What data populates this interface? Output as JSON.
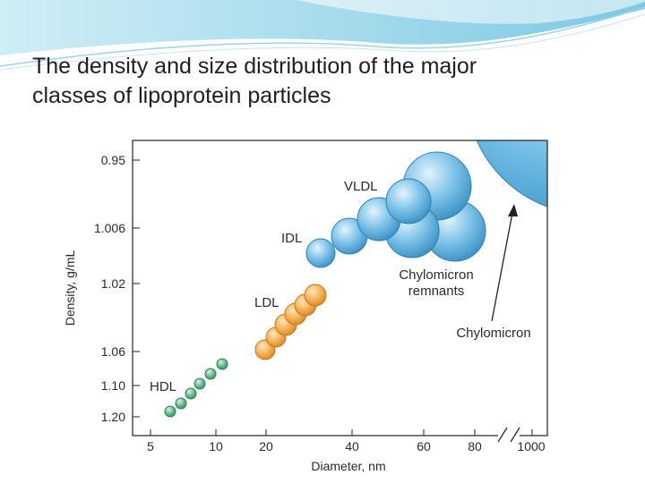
{
  "slide": {
    "title_line1": "The density and size distribution of the major",
    "title_line2": "classes of lipoprotein particles"
  },
  "figure": {
    "xlabel": "Diameter, nm",
    "ylabel": "Density, g/mL",
    "x_ticks": [
      "5",
      "10",
      "20",
      "40",
      "60",
      "80",
      "1000"
    ],
    "y_ticks": [
      "0.95",
      "1.006",
      "1.02",
      "1.06",
      "1.10",
      "1.20"
    ],
    "labels": {
      "vldl": "VLDL",
      "idl": "IDL",
      "ldl": "LDL",
      "hdl": "HDL",
      "remnants_line1": "Chylomicron",
      "remnants_line2": "remnants",
      "chylomicron": "Chylomicron"
    },
    "colors": {
      "hdl": "#5fb38a",
      "ldl": "#f2a94a",
      "idl_vldl": "#6fb8e0",
      "chylomicron": "#5aaedc",
      "slide_accent": "#a9d9ea"
    }
  }
}
